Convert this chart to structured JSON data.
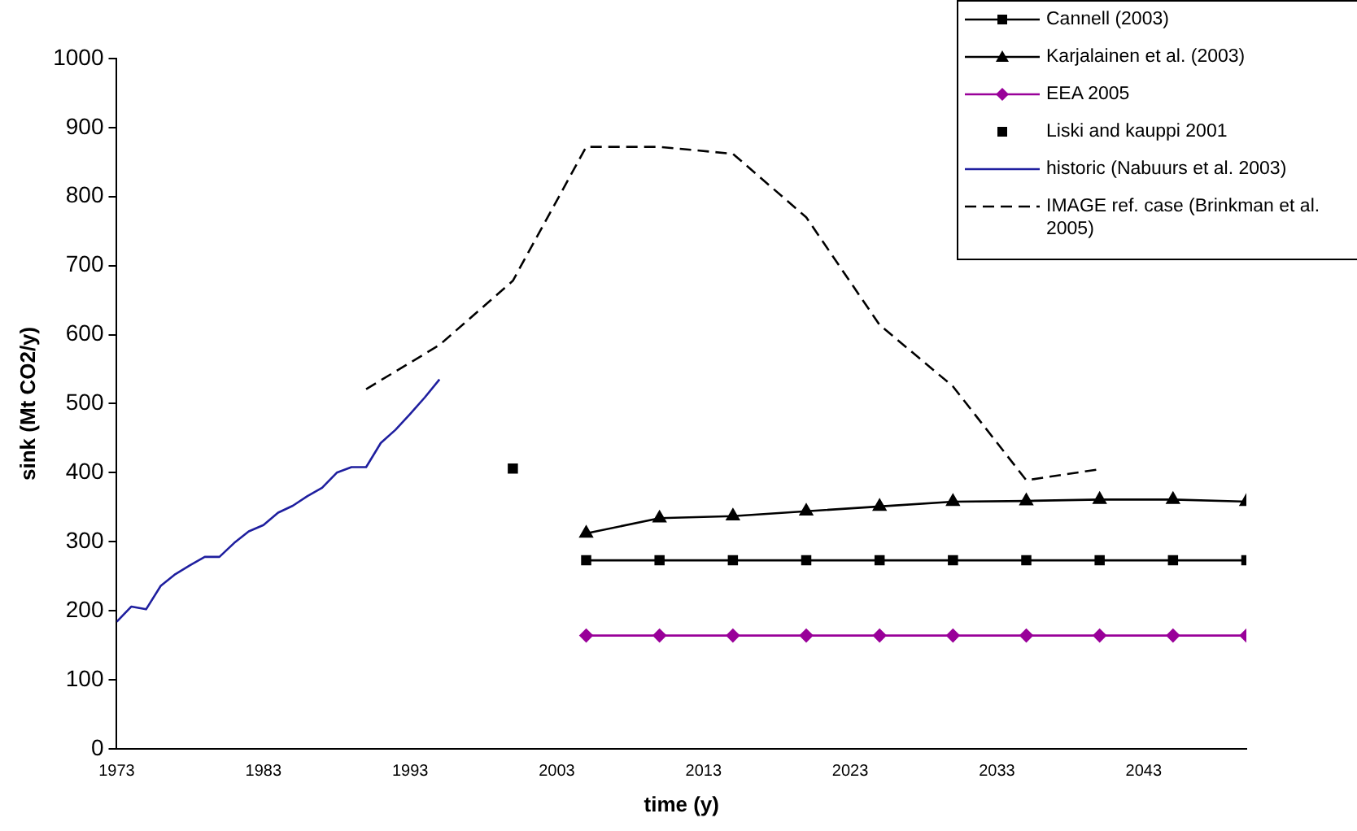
{
  "chart_data": {
    "type": "line",
    "xlabel": "time (y)",
    "ylabel": "sink (Mt CO2/y)",
    "xlim": [
      1973,
      2050
    ],
    "xticks": [
      1973,
      1983,
      1993,
      2003,
      2013,
      2023,
      2033,
      2043
    ],
    "ylim": [
      0,
      1000
    ],
    "yticks": [
      0,
      100,
      200,
      300,
      400,
      500,
      600,
      700,
      800,
      900,
      1000
    ],
    "grid": false,
    "legend": "top right",
    "series": [
      {
        "name": "Cannell (2003)",
        "color": "#000000",
        "marker": "square",
        "line_style": "solid",
        "x": [
          2005,
          2010,
          2015,
          2020,
          2025,
          2030,
          2035,
          2040,
          2045,
          2050
        ],
        "values": [
          273,
          273,
          273,
          273,
          273,
          273,
          273,
          273,
          273,
          273
        ]
      },
      {
        "name": "Karjalainen et al. (2003)",
        "color": "#000000",
        "marker": "triangle",
        "line_style": "solid",
        "x": [
          2005,
          2010,
          2015,
          2020,
          2025,
          2030,
          2035,
          2040,
          2045,
          2050
        ],
        "values": [
          312,
          334,
          337,
          344,
          351,
          358,
          359,
          361,
          361,
          358
        ]
      },
      {
        "name": "EEA 2005",
        "color": "#990099",
        "marker": "diamond",
        "line_style": "solid",
        "x": [
          2005,
          2010,
          2015,
          2020,
          2025,
          2030,
          2035,
          2040,
          2045,
          2050
        ],
        "values": [
          164,
          164,
          164,
          164,
          164,
          164,
          164,
          164,
          164,
          164
        ]
      },
      {
        "name": "Liski and kauppi 2001",
        "type": "scatter",
        "color": "#000000",
        "marker": "square",
        "x": [
          2000
        ],
        "values": [
          406
        ]
      },
      {
        "name": "historic (Nabuurs et al. 2003)",
        "color": "#1f1f9f",
        "marker": "none",
        "line_style": "solid",
        "x": [
          1973,
          1974,
          1975,
          1976,
          1977,
          1978,
          1979,
          1980,
          1981,
          1982,
          1983,
          1984,
          1985,
          1986,
          1987,
          1988,
          1989,
          1990,
          1991,
          1992,
          1993,
          1994,
          1995
        ],
        "values": [
          184,
          206,
          202,
          236,
          253,
          266,
          278,
          278,
          298,
          315,
          324,
          342,
          352,
          366,
          378,
          400,
          408,
          408,
          443,
          462,
          485,
          509,
          535
        ]
      },
      {
        "name": "IMAGE ref. case (Brinkman et al. 2005)",
        "color": "#000000",
        "marker": "none",
        "line_style": "dashed",
        "x": [
          1990,
          1995,
          2000,
          2005,
          2010,
          2015,
          2020,
          2025,
          2030,
          2035,
          2040
        ],
        "values": [
          521,
          585,
          678,
          872,
          872,
          862,
          770,
          614,
          525,
          389,
          405
        ]
      }
    ]
  }
}
